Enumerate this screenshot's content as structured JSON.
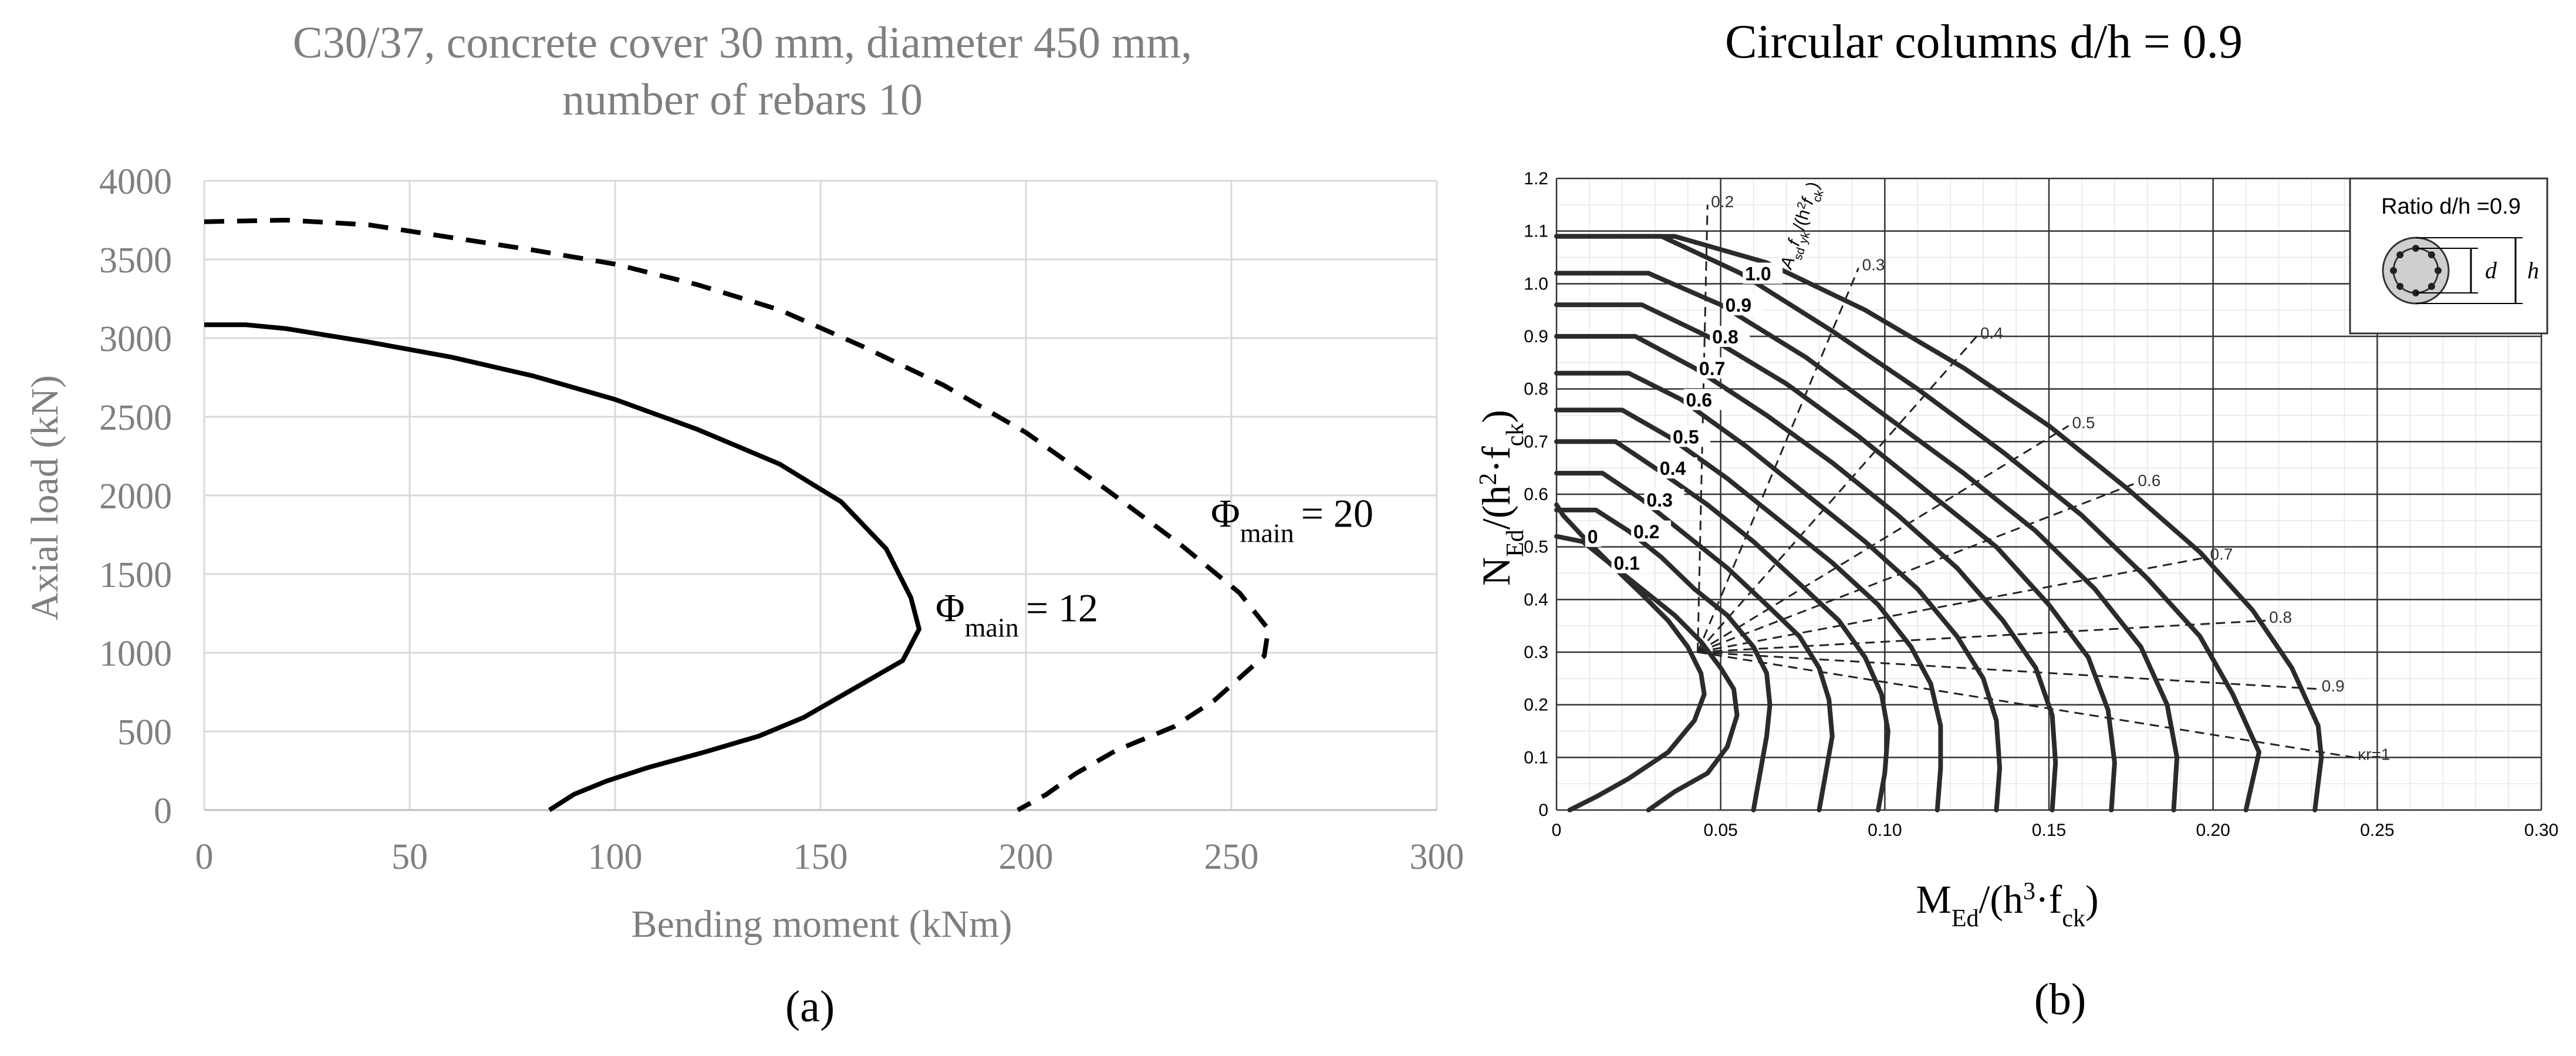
{
  "chart_data": [
    {
      "type": "line",
      "title_line1": "C30/37, concrete cover 30 mm, diameter  450 mm,",
      "title_line2": "number of rebars 10",
      "xlabel": "Bending moment (kNm)",
      "ylabel": "Axial load (kN)",
      "xlim": [
        0,
        300
      ],
      "ylim": [
        0,
        4000
      ],
      "xticks": [
        0,
        50,
        100,
        150,
        200,
        250,
        300
      ],
      "yticks": [
        0,
        500,
        1000,
        1500,
        2000,
        2500,
        3000,
        3500,
        4000
      ],
      "grid": true,
      "panel_label": "(a)",
      "series": [
        {
          "name": "Φmain = 12",
          "label_symbol": "Φ",
          "label_sub": "main",
          "label_value": "= 12",
          "label_at": [
            178,
            1200
          ],
          "style": "solid",
          "points": [
            [
              0,
              3085
            ],
            [
              10,
              3085
            ],
            [
              20,
              3060
            ],
            [
              40,
              2975
            ],
            [
              60,
              2880
            ],
            [
              80,
              2760
            ],
            [
              100,
              2610
            ],
            [
              120,
              2420
            ],
            [
              140,
              2200
            ],
            [
              155,
              1960
            ],
            [
              166,
              1660
            ],
            [
              172,
              1350
            ],
            [
              174,
              1150
            ],
            [
              170,
              950
            ],
            [
              158,
              770
            ],
            [
              146,
              590
            ],
            [
              135,
              470
            ],
            [
              122,
              370
            ],
            [
              108,
              270
            ],
            [
              98,
              185
            ],
            [
              90,
              100
            ],
            [
              84,
              0
            ]
          ]
        },
        {
          "name": "Φmain = 20",
          "label_symbol": "Φ",
          "label_sub": "main",
          "label_value": "= 20",
          "label_at": [
            245,
            1800
          ],
          "style": "dashed",
          "points": [
            [
              0,
              3740
            ],
            [
              20,
              3750
            ],
            [
              40,
              3720
            ],
            [
              60,
              3640
            ],
            [
              80,
              3560
            ],
            [
              100,
              3470
            ],
            [
              120,
              3340
            ],
            [
              140,
              3180
            ],
            [
              160,
              2950
            ],
            [
              180,
              2700
            ],
            [
              200,
              2400
            ],
            [
              220,
              2030
            ],
            [
              238,
              1680
            ],
            [
              252,
              1380
            ],
            [
              259,
              1150
            ],
            [
              258,
              980
            ],
            [
              252,
              840
            ],
            [
              246,
              700
            ],
            [
              236,
              530
            ],
            [
              222,
              380
            ],
            [
              212,
              230
            ],
            [
              205,
              100
            ],
            [
              198,
              0
            ]
          ]
        }
      ]
    },
    {
      "type": "line",
      "title": "Circular columns d/h = 0.9",
      "xlabel_main": "M",
      "xlabel_sub1": "Ed",
      "xlabel_mid": "/(h",
      "xlabel_sup": "3",
      "xlabel_tail1": "·f",
      "xlabel_sub2": "ck",
      "xlabel_end": ")",
      "ylabel_main": "N",
      "ylabel_sub1": "Ed",
      "ylabel_mid": "/(h",
      "ylabel_sup": "2",
      "ylabel_tail1": "·f",
      "ylabel_sub2": "ck",
      "ylabel_end": ")",
      "xlim": [
        0,
        0.3
      ],
      "ylim": [
        0,
        1.2
      ],
      "xticks": [
        "0",
        "0.05",
        "0.10",
        "0.15",
        "0.20",
        "0.25",
        "0.30"
      ],
      "yticks": [
        "0",
        "0.1",
        "0.2",
        "0.3",
        "0.4",
        "0.5",
        "0.6",
        "0.7",
        "0.8",
        "0.9",
        "1.0",
        "1.1",
        "1.2"
      ],
      "grid": true,
      "panel_label": "(b)",
      "inset_text": "Ratio d/h =0.9",
      "inset_d": "d",
      "inset_h": "h",
      "family_label_parts": [
        "A",
        "sd",
        "f",
        "yk",
        "/(h",
        "2",
        "f",
        "ck",
        ")"
      ],
      "curves": [
        {
          "label": "0",
          "points": [
            [
              0,
              0.58
            ],
            [
              0.002,
              0.56
            ],
            [
              0.008,
              0.52
            ],
            [
              0.016,
              0.47
            ],
            [
              0.026,
              0.41
            ],
            [
              0.034,
              0.36
            ],
            [
              0.04,
              0.31
            ],
            [
              0.044,
              0.26
            ],
            [
              0.045,
              0.22
            ],
            [
              0.042,
              0.17
            ],
            [
              0.034,
              0.11
            ],
            [
              0.022,
              0.06
            ],
            [
              0.012,
              0.025
            ],
            [
              0.004,
              0
            ]
          ]
        },
        {
          "label": "0.1",
          "points": [
            [
              0,
              0.52
            ],
            [
              0.008,
              0.51
            ],
            [
              0.016,
              0.47
            ],
            [
              0.026,
              0.42
            ],
            [
              0.036,
              0.37
            ],
            [
              0.044,
              0.32
            ],
            [
              0.05,
              0.27
            ],
            [
              0.054,
              0.23
            ],
            [
              0.055,
              0.18
            ],
            [
              0.052,
              0.12
            ],
            [
              0.046,
              0.07
            ],
            [
              0.036,
              0.035
            ],
            [
              0.028,
              0
            ]
          ]
        },
        {
          "label": "0.2",
          "points": [
            [
              0,
              0.57
            ],
            [
              0.012,
              0.57
            ],
            [
              0.022,
              0.53
            ],
            [
              0.032,
              0.48
            ],
            [
              0.042,
              0.42
            ],
            [
              0.052,
              0.37
            ],
            [
              0.06,
              0.31
            ],
            [
              0.064,
              0.26
            ],
            [
              0.065,
              0.2
            ],
            [
              0.064,
              0.14
            ],
            [
              0.062,
              0.07
            ],
            [
              0.06,
              0
            ]
          ]
        },
        {
          "label": "0.3",
          "points": [
            [
              0,
              0.64
            ],
            [
              0.014,
              0.64
            ],
            [
              0.026,
              0.59
            ],
            [
              0.04,
              0.52
            ],
            [
              0.052,
              0.46
            ],
            [
              0.064,
              0.39
            ],
            [
              0.074,
              0.33
            ],
            [
              0.08,
              0.27
            ],
            [
              0.083,
              0.21
            ],
            [
              0.084,
              0.14
            ],
            [
              0.082,
              0.07
            ],
            [
              0.08,
              0
            ]
          ]
        },
        {
          "label": "0.4",
          "points": [
            [
              0,
              0.7
            ],
            [
              0.018,
              0.7
            ],
            [
              0.03,
              0.65
            ],
            [
              0.046,
              0.58
            ],
            [
              0.06,
              0.51
            ],
            [
              0.074,
              0.43
            ],
            [
              0.086,
              0.36
            ],
            [
              0.094,
              0.29
            ],
            [
              0.099,
              0.22
            ],
            [
              0.101,
              0.15
            ],
            [
              0.1,
              0.07
            ],
            [
              0.098,
              0
            ]
          ]
        },
        {
          "label": "0.5",
          "points": [
            [
              0,
              0.76
            ],
            [
              0.02,
              0.76
            ],
            [
              0.034,
              0.71
            ],
            [
              0.052,
              0.63
            ],
            [
              0.068,
              0.55
            ],
            [
              0.084,
              0.47
            ],
            [
              0.098,
              0.39
            ],
            [
              0.108,
              0.31
            ],
            [
              0.114,
              0.24
            ],
            [
              0.117,
              0.16
            ],
            [
              0.117,
              0.08
            ],
            [
              0.116,
              0
            ]
          ]
        },
        {
          "label": "0.6",
          "points": [
            [
              0,
              0.83
            ],
            [
              0.022,
              0.83
            ],
            [
              0.038,
              0.78
            ],
            [
              0.058,
              0.69
            ],
            [
              0.076,
              0.6
            ],
            [
              0.094,
              0.51
            ],
            [
              0.11,
              0.42
            ],
            [
              0.122,
              0.33
            ],
            [
              0.13,
              0.25
            ],
            [
              0.134,
              0.17
            ],
            [
              0.135,
              0.08
            ],
            [
              0.134,
              0
            ]
          ]
        },
        {
          "label": "0.7",
          "points": [
            [
              0,
              0.9
            ],
            [
              0.024,
              0.9
            ],
            [
              0.042,
              0.84
            ],
            [
              0.064,
              0.75
            ],
            [
              0.084,
              0.66
            ],
            [
              0.104,
              0.56
            ],
            [
              0.122,
              0.46
            ],
            [
              0.136,
              0.36
            ],
            [
              0.146,
              0.27
            ],
            [
              0.151,
              0.18
            ],
            [
              0.152,
              0.09
            ],
            [
              0.151,
              0
            ]
          ]
        },
        {
          "label": "0.8",
          "points": [
            [
              0,
              0.96
            ],
            [
              0.026,
              0.96
            ],
            [
              0.046,
              0.9
            ],
            [
              0.07,
              0.81
            ],
            [
              0.092,
              0.71
            ],
            [
              0.114,
              0.6
            ],
            [
              0.134,
              0.5
            ],
            [
              0.15,
              0.39
            ],
            [
              0.162,
              0.29
            ],
            [
              0.168,
              0.19
            ],
            [
              0.17,
              0.09
            ],
            [
              0.169,
              0
            ]
          ]
        },
        {
          "label": "0.9",
          "points": [
            [
              0,
              1.02
            ],
            [
              0.028,
              1.02
            ],
            [
              0.05,
              0.96
            ],
            [
              0.076,
              0.86
            ],
            [
              0.1,
              0.75
            ],
            [
              0.124,
              0.64
            ],
            [
              0.146,
              0.53
            ],
            [
              0.164,
              0.42
            ],
            [
              0.178,
              0.31
            ],
            [
              0.186,
              0.2
            ],
            [
              0.189,
              0.1
            ],
            [
              0.188,
              0
            ]
          ]
        },
        {
          "label": "1.0",
          "points": [
            [
              0,
              1.09
            ],
            [
              0.032,
              1.09
            ],
            [
              0.056,
              1.02
            ],
            [
              0.084,
              0.91
            ],
            [
              0.11,
              0.8
            ],
            [
              0.136,
              0.68
            ],
            [
              0.16,
              0.56
            ],
            [
              0.18,
              0.44
            ],
            [
              0.196,
              0.33
            ],
            [
              0.206,
              0.22
            ],
            [
              0.214,
              0.11
            ],
            [
              0.21,
              0
            ]
          ]
        },
        {
          "label": "",
          "points": [
            [
              0,
              1.09
            ],
            [
              0.036,
              1.09
            ],
            [
              0.064,
              1.04
            ],
            [
              0.094,
              0.95
            ],
            [
              0.124,
              0.84
            ],
            [
              0.15,
              0.73
            ],
            [
              0.174,
              0.61
            ],
            [
              0.196,
              0.49
            ],
            [
              0.212,
              0.38
            ],
            [
              0.224,
              0.27
            ],
            [
              0.232,
              0.16
            ],
            [
              0.233,
              0.1
            ],
            [
              0.231,
              0
            ]
          ]
        }
      ],
      "rays": [
        {
          "label": "0.2",
          "to": [
            0.046,
            1.15
          ]
        },
        {
          "label": "0.3",
          "to": [
            0.092,
            1.03
          ]
        },
        {
          "label": "0.4",
          "to": [
            0.128,
            0.9
          ]
        },
        {
          "label": "0.5",
          "to": [
            0.156,
            0.73
          ]
        },
        {
          "label": "0.6",
          "to": [
            0.176,
            0.62
          ]
        },
        {
          "label": "0.7",
          "to": [
            0.198,
            0.48
          ]
        },
        {
          "label": "0.8",
          "to": [
            0.216,
            0.36
          ]
        },
        {
          "label": "0.9",
          "to": [
            0.232,
            0.23
          ]
        },
        {
          "label": "κr=1",
          "to": [
            0.243,
            0.1
          ]
        }
      ]
    }
  ]
}
